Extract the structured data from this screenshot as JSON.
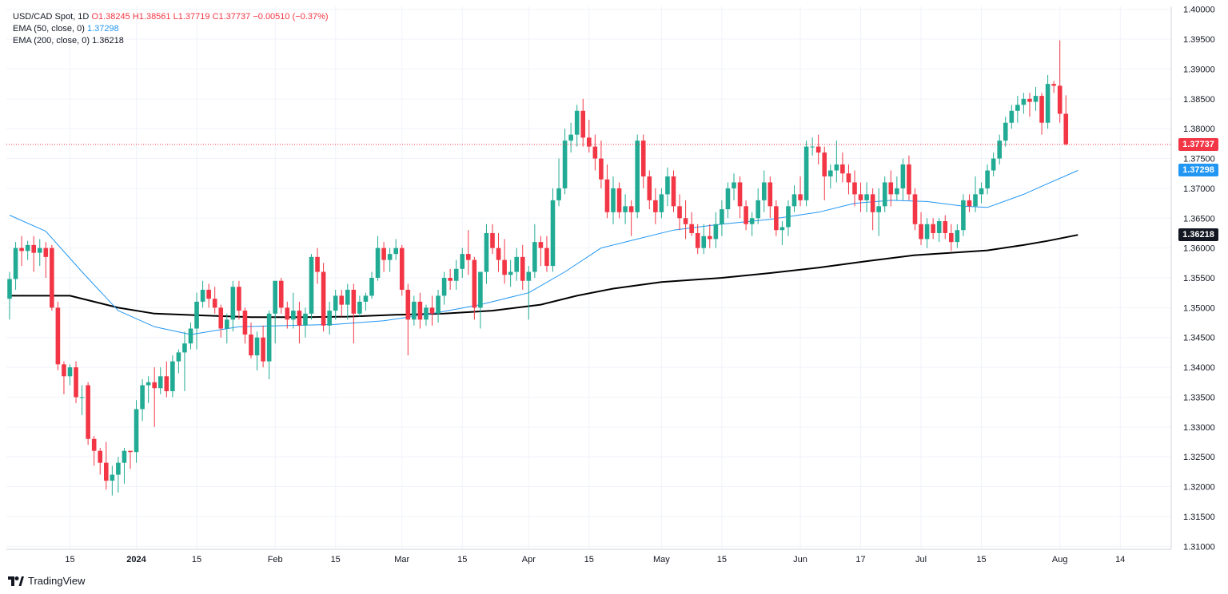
{
  "legend": {
    "symbol": "USD/CAD Spot, 1D",
    "open": "O1.38245",
    "high": "H1.38561",
    "low": "L1.37719",
    "close": "C1.37737",
    "change": "−0.00510 (−0.37%)",
    "ema50_label": "EMA (50, close, 0)",
    "ema50_value": "1.37298",
    "ema200_label": "EMA (200, close, 0)",
    "ema200_value": "1.36218"
  },
  "price_tags": {
    "last": "1.37737",
    "ema50": "1.37298",
    "ema200": "1.36218"
  },
  "colors": {
    "up": "#22ab94",
    "down": "#f23645",
    "ema50": "#2196f3",
    "ema200": "#000000",
    "grid": "#f0f3fa",
    "axis_text": "#131722"
  },
  "brand": "TradingView",
  "chart_data": {
    "type": "candlestick",
    "title": "USD/CAD Spot, 1D",
    "ylim": [
      1.3095,
      1.4005
    ],
    "y_ticks": [
      "1.40000",
      "1.39500",
      "1.39000",
      "1.38500",
      "1.38000",
      "1.37500",
      "1.37000",
      "1.36500",
      "1.36000",
      "1.35500",
      "1.35000",
      "1.34500",
      "1.34000",
      "1.33500",
      "1.33000",
      "1.32500",
      "1.32000",
      "1.31500",
      "1.31000"
    ],
    "x_ticks": [
      {
        "label": "15",
        "index": 10
      },
      {
        "label": "2024",
        "index": 21
      },
      {
        "label": "15",
        "index": 31
      },
      {
        "label": "Feb",
        "index": 44
      },
      {
        "label": "15",
        "index": 54
      },
      {
        "label": "Mar",
        "index": 65
      },
      {
        "label": "15",
        "index": 75
      },
      {
        "label": "Apr",
        "index": 86
      },
      {
        "label": "15",
        "index": 96
      },
      {
        "label": "May",
        "index": 108
      },
      {
        "label": "15",
        "index": 118
      },
      {
        "label": "Jun",
        "index": 131
      },
      {
        "label": "17",
        "index": 141
      },
      {
        "label": "Jul",
        "index": 151
      },
      {
        "label": "15",
        "index": 161
      },
      {
        "label": "Aug",
        "index": 174
      },
      {
        "label": "14",
        "index": 184
      }
    ],
    "ohlc": [
      [
        1.3515,
        1.356,
        1.348,
        1.3548
      ],
      [
        1.3548,
        1.361,
        1.353,
        1.36
      ],
      [
        1.36,
        1.362,
        1.357,
        1.3595
      ],
      [
        1.3595,
        1.3612,
        1.358,
        1.3605
      ],
      [
        1.3605,
        1.362,
        1.356,
        1.3592
      ],
      [
        1.3592,
        1.3615,
        1.357,
        1.36
      ],
      [
        1.36,
        1.361,
        1.355,
        1.3585
      ],
      [
        1.36,
        1.3605,
        1.3495,
        1.35
      ],
      [
        1.35,
        1.351,
        1.3395,
        1.3405
      ],
      [
        1.3405,
        1.341,
        1.3355,
        1.3385
      ],
      [
        1.3385,
        1.3405,
        1.337,
        1.34
      ],
      [
        1.34,
        1.341,
        1.334,
        1.335
      ],
      [
        1.335,
        1.337,
        1.332,
        1.335
      ],
      [
        1.337,
        1.3375,
        1.327,
        1.328
      ],
      [
        1.328,
        1.3285,
        1.3235,
        1.326
      ],
      [
        1.326,
        1.3265,
        1.322,
        1.324
      ],
      [
        1.324,
        1.3275,
        1.3195,
        1.321
      ],
      [
        1.321,
        1.3235,
        1.3185,
        1.322
      ],
      [
        1.322,
        1.325,
        1.319,
        1.324
      ],
      [
        1.324,
        1.3265,
        1.3205,
        1.326
      ],
      [
        1.326,
        1.326,
        1.323,
        1.3258
      ],
      [
        1.3258,
        1.3345,
        1.324,
        1.333
      ],
      [
        1.333,
        1.338,
        1.331,
        1.337
      ],
      [
        1.337,
        1.3385,
        1.334,
        1.3375
      ],
      [
        1.3375,
        1.34,
        1.33,
        1.3365
      ],
      [
        1.3365,
        1.34,
        1.3355,
        1.3385
      ],
      [
        1.3385,
        1.341,
        1.335,
        1.336
      ],
      [
        1.336,
        1.342,
        1.335,
        1.341
      ],
      [
        1.341,
        1.343,
        1.339,
        1.3425
      ],
      [
        1.3425,
        1.346,
        1.336,
        1.344
      ],
      [
        1.344,
        1.3475,
        1.343,
        1.3465
      ],
      [
        1.3465,
        1.3525,
        1.343,
        1.351
      ],
      [
        1.351,
        1.3545,
        1.35,
        1.353
      ],
      [
        1.353,
        1.354,
        1.35,
        1.3515
      ],
      [
        1.3515,
        1.3535,
        1.349,
        1.35
      ],
      [
        1.35,
        1.3505,
        1.345,
        1.3465
      ],
      [
        1.3465,
        1.349,
        1.344,
        1.348
      ],
      [
        1.348,
        1.3545,
        1.346,
        1.3535
      ],
      [
        1.3535,
        1.3545,
        1.348,
        1.3495
      ],
      [
        1.3495,
        1.35,
        1.344,
        1.3455
      ],
      [
        1.3455,
        1.3475,
        1.3415,
        1.342
      ],
      [
        1.342,
        1.346,
        1.3395,
        1.345
      ],
      [
        1.345,
        1.347,
        1.34,
        1.341
      ],
      [
        1.341,
        1.3495,
        1.338,
        1.349
      ],
      [
        1.349,
        1.354,
        1.344,
        1.3545
      ],
      [
        1.3545,
        1.355,
        1.349,
        1.35
      ],
      [
        1.35,
        1.351,
        1.3465,
        1.348
      ],
      [
        1.348,
        1.3525,
        1.3465,
        1.3495
      ],
      [
        1.3495,
        1.351,
        1.344,
        1.347
      ],
      [
        1.347,
        1.35,
        1.345,
        1.349
      ],
      [
        1.349,
        1.359,
        1.348,
        1.3585
      ],
      [
        1.3585,
        1.36,
        1.354,
        1.356
      ],
      [
        1.356,
        1.3575,
        1.346,
        1.347
      ],
      [
        1.347,
        1.351,
        1.3455,
        1.3495
      ],
      [
        1.3495,
        1.353,
        1.348,
        1.352
      ],
      [
        1.352,
        1.353,
        1.3485,
        1.3505
      ],
      [
        1.3505,
        1.354,
        1.348,
        1.353
      ],
      [
        1.353,
        1.354,
        1.344,
        1.349
      ],
      [
        1.349,
        1.352,
        1.3485,
        1.351
      ],
      [
        1.351,
        1.3525,
        1.3495,
        1.352
      ],
      [
        1.352,
        1.356,
        1.3515,
        1.355
      ],
      [
        1.355,
        1.362,
        1.3545,
        1.36
      ],
      [
        1.36,
        1.361,
        1.356,
        1.358
      ],
      [
        1.358,
        1.36,
        1.356,
        1.359
      ],
      [
        1.359,
        1.3615,
        1.358,
        1.36
      ],
      [
        1.36,
        1.3605,
        1.352,
        1.353
      ],
      [
        1.353,
        1.354,
        1.342,
        1.348
      ],
      [
        1.348,
        1.352,
        1.347,
        1.351
      ],
      [
        1.351,
        1.3525,
        1.3465,
        1.348
      ],
      [
        1.348,
        1.3505,
        1.347,
        1.35
      ],
      [
        1.35,
        1.352,
        1.347,
        1.349
      ],
      [
        1.349,
        1.353,
        1.3475,
        1.352
      ],
      [
        1.352,
        1.356,
        1.3505,
        1.355
      ],
      [
        1.355,
        1.3565,
        1.353,
        1.3545
      ],
      [
        1.3545,
        1.358,
        1.353,
        1.3565
      ],
      [
        1.3565,
        1.36,
        1.355,
        1.359
      ],
      [
        1.359,
        1.363,
        1.3555,
        1.358
      ],
      [
        1.358,
        1.3585,
        1.348,
        1.35
      ],
      [
        1.35,
        1.356,
        1.3465,
        1.356
      ],
      [
        1.356,
        1.364,
        1.354,
        1.3625
      ],
      [
        1.3625,
        1.364,
        1.359,
        1.36
      ],
      [
        1.36,
        1.3625,
        1.356,
        1.358
      ],
      [
        1.358,
        1.3615,
        1.354,
        1.3555
      ],
      [
        1.3555,
        1.358,
        1.3535,
        1.356
      ],
      [
        1.356,
        1.36,
        1.3545,
        1.3585
      ],
      [
        1.3585,
        1.3605,
        1.353,
        1.3545
      ],
      [
        1.3545,
        1.357,
        1.348,
        1.356
      ],
      [
        1.356,
        1.364,
        1.355,
        1.361
      ],
      [
        1.361,
        1.362,
        1.357,
        1.36
      ],
      [
        1.36,
        1.362,
        1.356,
        1.357
      ],
      [
        1.357,
        1.37,
        1.356,
        1.368
      ],
      [
        1.368,
        1.375,
        1.367,
        1.37
      ],
      [
        1.37,
        1.38,
        1.369,
        1.378
      ],
      [
        1.378,
        1.381,
        1.376,
        1.379
      ],
      [
        1.379,
        1.384,
        1.377,
        1.383
      ],
      [
        1.383,
        1.385,
        1.377,
        1.3785
      ],
      [
        1.3785,
        1.3815,
        1.376,
        1.377
      ],
      [
        1.377,
        1.379,
        1.373,
        1.375
      ],
      [
        1.375,
        1.378,
        1.37,
        1.3715
      ],
      [
        1.3715,
        1.374,
        1.365,
        1.366
      ],
      [
        1.366,
        1.372,
        1.364,
        1.37
      ],
      [
        1.37,
        1.371,
        1.365,
        1.366
      ],
      [
        1.366,
        1.369,
        1.364,
        1.367
      ],
      [
        1.367,
        1.368,
        1.362,
        1.366
      ],
      [
        1.366,
        1.379,
        1.365,
        1.378
      ],
      [
        1.378,
        1.379,
        1.37,
        1.372
      ],
      [
        1.372,
        1.373,
        1.3665,
        1.368
      ],
      [
        1.368,
        1.37,
        1.364,
        1.366
      ],
      [
        1.366,
        1.37,
        1.365,
        1.369
      ],
      [
        1.369,
        1.3735,
        1.367,
        1.372
      ],
      [
        1.372,
        1.373,
        1.366,
        1.367
      ],
      [
        1.367,
        1.369,
        1.363,
        1.365
      ],
      [
        1.365,
        1.368,
        1.3615,
        1.364
      ],
      [
        1.364,
        1.366,
        1.362,
        1.3625
      ],
      [
        1.3625,
        1.364,
        1.359,
        1.36
      ],
      [
        1.36,
        1.364,
        1.359,
        1.362
      ],
      [
        1.362,
        1.364,
        1.36,
        1.3615
      ],
      [
        1.3615,
        1.366,
        1.36,
        1.364
      ],
      [
        1.364,
        1.368,
        1.362,
        1.3665
      ],
      [
        1.3665,
        1.371,
        1.365,
        1.37
      ],
      [
        1.37,
        1.3725,
        1.368,
        1.371
      ],
      [
        1.371,
        1.372,
        1.365,
        1.367
      ],
      [
        1.367,
        1.368,
        1.363,
        1.364
      ],
      [
        1.364,
        1.366,
        1.362,
        1.365
      ],
      [
        1.365,
        1.37,
        1.364,
        1.368
      ],
      [
        1.368,
        1.373,
        1.366,
        1.371
      ],
      [
        1.371,
        1.372,
        1.365,
        1.367
      ],
      [
        1.367,
        1.368,
        1.362,
        1.363
      ],
      [
        1.363,
        1.3645,
        1.3605,
        1.3635
      ],
      [
        1.3635,
        1.368,
        1.362,
        1.367
      ],
      [
        1.367,
        1.3705,
        1.366,
        1.369
      ],
      [
        1.369,
        1.372,
        1.367,
        1.368
      ],
      [
        1.368,
        1.378,
        1.367,
        1.377
      ],
      [
        1.377,
        1.3785,
        1.3755,
        1.377
      ],
      [
        1.377,
        1.379,
        1.374,
        1.376
      ],
      [
        1.376,
        1.377,
        1.368,
        1.372
      ],
      [
        1.372,
        1.374,
        1.37,
        1.373
      ],
      [
        1.373,
        1.378,
        1.371,
        1.374
      ],
      [
        1.374,
        1.376,
        1.371,
        1.3725
      ],
      [
        1.3725,
        1.374,
        1.369,
        1.371
      ],
      [
        1.371,
        1.373,
        1.367,
        1.369
      ],
      [
        1.369,
        1.371,
        1.366,
        1.368
      ],
      [
        1.368,
        1.371,
        1.366,
        1.369
      ],
      [
        1.369,
        1.37,
        1.363,
        1.366
      ],
      [
        1.366,
        1.37,
        1.362,
        1.367
      ],
      [
        1.367,
        1.372,
        1.366,
        1.371
      ],
      [
        1.371,
        1.373,
        1.367,
        1.369
      ],
      [
        1.369,
        1.372,
        1.368,
        1.37
      ],
      [
        1.37,
        1.375,
        1.368,
        1.374
      ],
      [
        1.374,
        1.3755,
        1.368,
        1.369
      ],
      [
        1.369,
        1.37,
        1.363,
        1.364
      ],
      [
        1.364,
        1.366,
        1.3605,
        1.3615
      ],
      [
        1.3615,
        1.365,
        1.36,
        1.364
      ],
      [
        1.364,
        1.365,
        1.3615,
        1.3625
      ],
      [
        1.3625,
        1.365,
        1.361,
        1.3645
      ],
      [
        1.3645,
        1.3655,
        1.3615,
        1.3625
      ],
      [
        1.3625,
        1.364,
        1.3595,
        1.361
      ],
      [
        1.361,
        1.364,
        1.36,
        1.363
      ],
      [
        1.363,
        1.369,
        1.362,
        1.368
      ],
      [
        1.368,
        1.369,
        1.366,
        1.367
      ],
      [
        1.367,
        1.372,
        1.366,
        1.369
      ],
      [
        1.369,
        1.371,
        1.3675,
        1.37
      ],
      [
        1.37,
        1.374,
        1.369,
        1.373
      ],
      [
        1.373,
        1.376,
        1.372,
        1.375
      ],
      [
        1.375,
        1.379,
        1.374,
        1.378
      ],
      [
        1.378,
        1.382,
        1.377,
        1.381
      ],
      [
        1.381,
        1.384,
        1.38,
        1.383
      ],
      [
        1.383,
        1.3855,
        1.381,
        1.384
      ],
      [
        1.384,
        1.386,
        1.3825,
        1.385
      ],
      [
        1.385,
        1.386,
        1.382,
        1.3845
      ],
      [
        1.3845,
        1.387,
        1.383,
        1.3855
      ],
      [
        1.3855,
        1.386,
        1.379,
        1.381
      ],
      [
        1.381,
        1.389,
        1.38,
        1.3875
      ],
      [
        1.3875,
        1.388,
        1.386,
        1.3872
      ],
      [
        1.3872,
        1.3948,
        1.381,
        1.3825
      ],
      [
        1.3825,
        1.3856,
        1.3772,
        1.3774
      ]
    ],
    "ema50": [
      [
        0,
        1.3655
      ],
      [
        6,
        1.3628
      ],
      [
        12,
        1.356
      ],
      [
        18,
        1.3495
      ],
      [
        24,
        1.3468
      ],
      [
        30,
        1.3455
      ],
      [
        38,
        1.3468
      ],
      [
        46,
        1.347
      ],
      [
        54,
        1.3472
      ],
      [
        62,
        1.3478
      ],
      [
        70,
        1.349
      ],
      [
        78,
        1.3505
      ],
      [
        86,
        1.3525
      ],
      [
        92,
        1.356
      ],
      [
        98,
        1.36
      ],
      [
        104,
        1.3615
      ],
      [
        110,
        1.363
      ],
      [
        118,
        1.364
      ],
      [
        126,
        1.3648
      ],
      [
        134,
        1.366
      ],
      [
        140,
        1.3675
      ],
      [
        146,
        1.368
      ],
      [
        152,
        1.3678
      ],
      [
        158,
        1.367
      ],
      [
        162,
        1.3668
      ],
      [
        168,
        1.369
      ],
      [
        172,
        1.3708
      ],
      [
        177,
        1.373
      ]
    ],
    "ema200": [
      [
        0,
        1.352
      ],
      [
        10,
        1.352
      ],
      [
        18,
        1.35
      ],
      [
        24,
        1.349
      ],
      [
        32,
        1.3487
      ],
      [
        40,
        1.3484
      ],
      [
        48,
        1.3484
      ],
      [
        56,
        1.3485
      ],
      [
        64,
        1.3488
      ],
      [
        72,
        1.349
      ],
      [
        80,
        1.3495
      ],
      [
        88,
        1.3505
      ],
      [
        94,
        1.352
      ],
      [
        100,
        1.3532
      ],
      [
        108,
        1.3543
      ],
      [
        118,
        1.355
      ],
      [
        126,
        1.3558
      ],
      [
        134,
        1.3567
      ],
      [
        142,
        1.3578
      ],
      [
        150,
        1.3588
      ],
      [
        156,
        1.3592
      ],
      [
        162,
        1.3596
      ],
      [
        168,
        1.3605
      ],
      [
        172,
        1.3612
      ],
      [
        177,
        1.3622
      ]
    ],
    "last_price": 1.37737
  }
}
